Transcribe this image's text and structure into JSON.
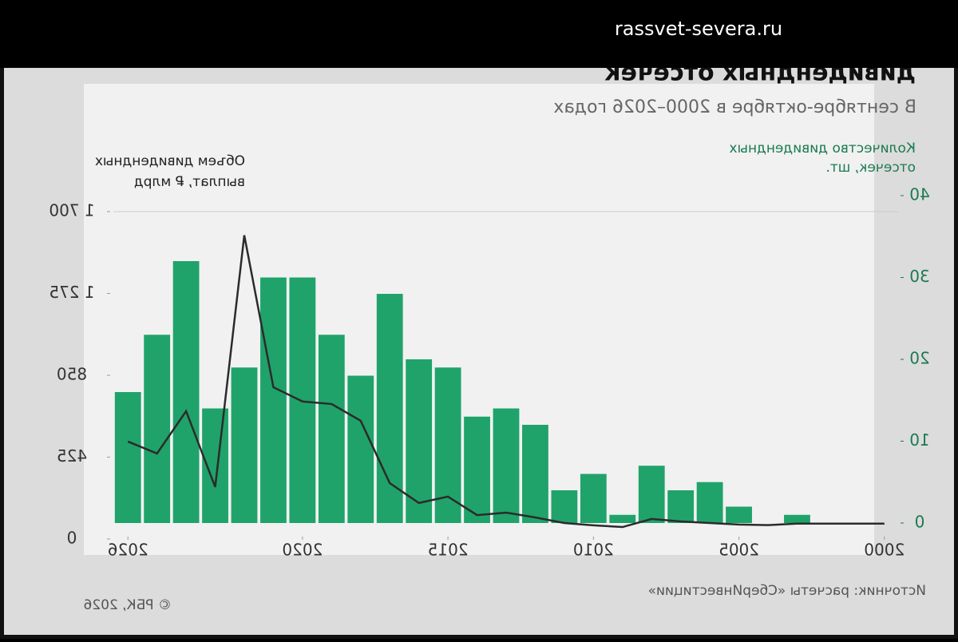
{
  "site": "rassvet-severa.ru",
  "chart_data": {
    "type": "bar",
    "title": "дивидендных отсечек",
    "subtitle": "В сентябре-октябре в 2000–2026 годах",
    "y_label": [
      "Количество дивидендных",
      "отсечек, шт."
    ],
    "y2_label": [
      "Объем дивидендных",
      "выплат, ₽ млрд"
    ],
    "x": [
      2000,
      2001,
      2002,
      2003,
      2004,
      2005,
      2006,
      2007,
      2008,
      2009,
      2010,
      2011,
      2012,
      2013,
      2014,
      2015,
      2016,
      2017,
      2018,
      2019,
      2020,
      2021,
      2022,
      2023,
      2024,
      2025,
      2026
    ],
    "xlim": [
      1999.5,
      2026.5
    ],
    "xticks": [
      2000,
      2005,
      2010,
      2015,
      2020,
      2026
    ],
    "ylim": [
      0,
      40
    ],
    "yticks": [
      0,
      10,
      20,
      30,
      40
    ],
    "y2lim": [
      0,
      1700
    ],
    "y2ticks": [
      0,
      425,
      850,
      {
        "value": 1275,
        "label": "1 275"
      },
      {
        "value": 1700,
        "label": "1 700"
      }
    ],
    "series": [
      {
        "name": "Количество дивидендных отсечек",
        "type": "bar",
        "color": "#1fa36a",
        "values": [
          0,
          0,
          0,
          1,
          0,
          2,
          5,
          4,
          7,
          1,
          6,
          4,
          12,
          14,
          13,
          19,
          20,
          28,
          18,
          23,
          30,
          30,
          19,
          14,
          32,
          23,
          16
        ]
      },
      {
        "name": "Объем дивидендных выплат",
        "type": "line",
        "axis": "y2",
        "color": "#2b2b2b",
        "values": [
          80,
          80,
          80,
          80,
          72,
          75,
          83,
          91,
          104,
          62,
          71,
          83,
          112,
          137,
          124,
          220,
          187,
          290,
          614,
          701,
          714,
          788,
          1577,
          270,
          664,
          444,
          506
        ]
      }
    ],
    "source": "Источник: расчеты «СберИнвестиции»",
    "copyright": "© РБК, 2026"
  }
}
